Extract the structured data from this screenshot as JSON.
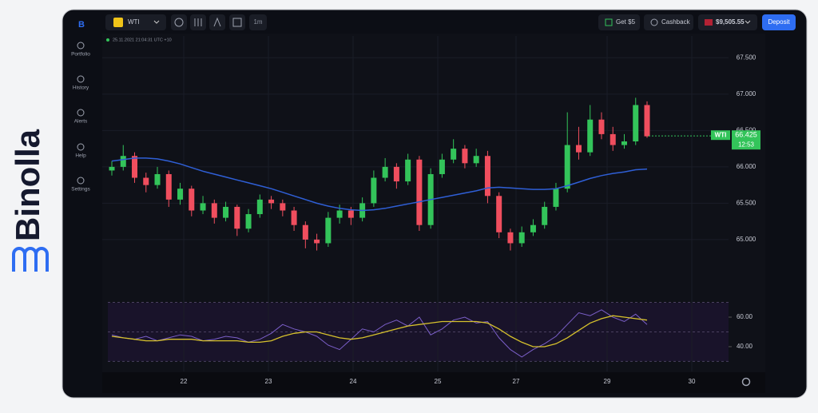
{
  "brand": "Binolla",
  "sidebar": {
    "items": [
      "Portfolio",
      "History",
      "Alerts",
      "Help",
      "Settings"
    ]
  },
  "toolbar": {
    "asset": "WTI",
    "timeframe": "1m",
    "bonus": "Get $5",
    "cashback": "Cashback",
    "balance": "$9,505.55",
    "deposit": "Deposit"
  },
  "chart": {
    "timestamp": "25.11.2021 21:04:31 UTC +10",
    "up_color": "#33c45a",
    "down_color": "#f04e5e",
    "ma_color": "#2f5fd6",
    "ylim": [
      64.34,
      67.8
    ],
    "yticks": [
      {
        "value": 65,
        "label": "65.000"
      },
      {
        "value": 65.5,
        "label": "65.500"
      },
      {
        "value": 66,
        "label": "66.000"
      },
      {
        "value": 66.5,
        "label": "66.500"
      },
      {
        "value": 67,
        "label": "67.000"
      },
      {
        "value": 67.5,
        "label": "67.500"
      }
    ],
    "candles": [
      [
        65.95,
        66.08,
        65.88,
        66.0
      ],
      [
        66.0,
        66.3,
        65.95,
        66.15
      ],
      [
        66.15,
        66.2,
        65.78,
        65.85
      ],
      [
        65.85,
        65.92,
        65.65,
        65.75
      ],
      [
        65.75,
        66.0,
        65.7,
        65.9
      ],
      [
        65.9,
        65.95,
        65.45,
        65.55
      ],
      [
        65.55,
        65.78,
        65.48,
        65.7
      ],
      [
        65.7,
        65.74,
        65.32,
        65.4
      ],
      [
        65.4,
        65.6,
        65.35,
        65.5
      ],
      [
        65.5,
        65.55,
        65.22,
        65.3
      ],
      [
        65.3,
        65.52,
        65.25,
        65.45
      ],
      [
        65.45,
        65.48,
        65.05,
        65.15
      ],
      [
        65.15,
        65.42,
        65.1,
        65.35
      ],
      [
        65.35,
        65.62,
        65.3,
        65.55
      ],
      [
        65.55,
        65.6,
        65.42,
        65.5
      ],
      [
        65.5,
        65.55,
        65.32,
        65.4
      ],
      [
        65.4,
        65.45,
        65.12,
        65.2
      ],
      [
        65.2,
        65.25,
        64.88,
        65.0
      ],
      [
        65.0,
        65.08,
        64.85,
        64.95
      ],
      [
        64.95,
        65.38,
        64.9,
        65.3
      ],
      [
        65.3,
        65.48,
        65.22,
        65.4
      ],
      [
        65.4,
        65.45,
        65.2,
        65.3
      ],
      [
        65.3,
        65.58,
        65.25,
        65.5
      ],
      [
        65.5,
        65.95,
        65.45,
        65.85
      ],
      [
        65.85,
        66.12,
        65.8,
        66.0
      ],
      [
        66.0,
        66.05,
        65.7,
        65.8
      ],
      [
        65.8,
        66.18,
        65.75,
        66.1
      ],
      [
        66.1,
        66.15,
        65.12,
        65.2
      ],
      [
        65.2,
        65.98,
        65.15,
        65.9
      ],
      [
        65.9,
        66.18,
        65.85,
        66.1
      ],
      [
        66.1,
        66.38,
        66.05,
        66.25
      ],
      [
        66.25,
        66.3,
        65.98,
        66.05
      ],
      [
        66.05,
        66.25,
        66.0,
        66.15
      ],
      [
        66.15,
        66.22,
        65.5,
        65.6
      ],
      [
        65.6,
        65.65,
        65.02,
        65.1
      ],
      [
        65.1,
        65.15,
        64.85,
        64.95
      ],
      [
        64.95,
        65.18,
        64.9,
        65.1
      ],
      [
        65.1,
        65.28,
        65.05,
        65.2
      ],
      [
        65.2,
        65.52,
        65.15,
        65.45
      ],
      [
        65.45,
        65.78,
        65.4,
        65.7
      ],
      [
        65.7,
        66.75,
        65.65,
        66.3
      ],
      [
        66.3,
        66.55,
        66.1,
        66.2
      ],
      [
        66.2,
        66.85,
        66.15,
        66.65
      ],
      [
        66.65,
        66.75,
        66.38,
        66.45
      ],
      [
        66.45,
        66.55,
        66.22,
        66.3
      ],
      [
        66.3,
        66.45,
        66.25,
        66.35
      ],
      [
        66.35,
        66.95,
        66.3,
        66.85
      ],
      [
        66.85,
        66.9,
        66.4,
        66.42
      ]
    ],
    "ma": [
      66.08,
      66.1,
      66.12,
      66.12,
      66.11,
      66.08,
      66.04,
      65.99,
      65.94,
      65.9,
      65.86,
      65.82,
      65.78,
      65.74,
      65.7,
      65.65,
      65.6,
      65.55,
      65.5,
      65.46,
      65.43,
      65.41,
      65.4,
      65.41,
      65.43,
      65.46,
      65.49,
      65.52,
      65.55,
      65.58,
      65.61,
      65.64,
      65.67,
      65.71,
      65.72,
      65.71,
      65.7,
      65.69,
      65.69,
      65.7,
      65.74,
      65.79,
      65.84,
      65.88,
      65.91,
      65.93,
      65.96,
      65.97
    ],
    "price_tag": {
      "symbol": "WTI",
      "price": 66.425,
      "timer": "12:53"
    },
    "x_labels": [
      "22",
      "23",
      "24",
      "25",
      "27",
      "29",
      "30"
    ],
    "rsi": {
      "ylim": [
        25.9,
        75.7
      ],
      "yticks": [
        {
          "value": 40,
          "label": "40.00"
        },
        {
          "value": 60,
          "label": "60.00"
        }
      ],
      "levels": [
        30,
        50,
        70
      ],
      "color": "#7b5fc9",
      "ma_color": "#d6c12c",
      "values": [
        48,
        46,
        45,
        47,
        44,
        46,
        48,
        47,
        44,
        45,
        47,
        46,
        43,
        45,
        49,
        55,
        52,
        50,
        47,
        41,
        38,
        45,
        52,
        50,
        55,
        58,
        54,
        60,
        48,
        52,
        58,
        60,
        56,
        57,
        46,
        38,
        33,
        38,
        42,
        47,
        55,
        63,
        61,
        65,
        60,
        57,
        62,
        55
      ],
      "ma": [
        47,
        46,
        45,
        44,
        44,
        45,
        45,
        45,
        44,
        44,
        44,
        44,
        43,
        43,
        44,
        47,
        49,
        50,
        50,
        48,
        46,
        45,
        46,
        48,
        50,
        52,
        54,
        55,
        56,
        57,
        57,
        57,
        57,
        56,
        52,
        47,
        43,
        40,
        40,
        42,
        46,
        51,
        56,
        59,
        61,
        60,
        59,
        58
      ]
    }
  }
}
